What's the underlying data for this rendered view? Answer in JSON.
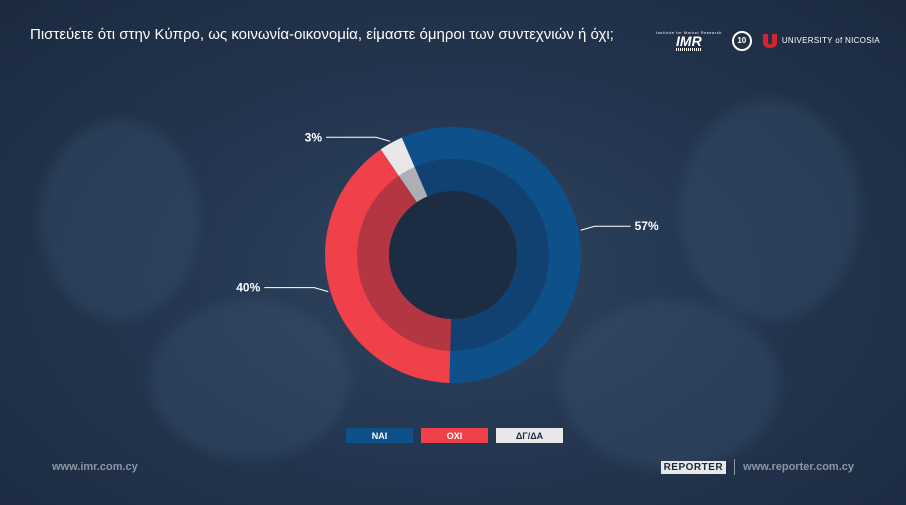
{
  "title": "Πιστεύετε ότι στην Κύπρο, ως κοινωνία-οικονομία, είμαστε όμηροι των συντεχνιών ή όχι;",
  "logos": {
    "imr_small": "Institute for Market Research",
    "imr_big": "IMR",
    "anniversary": "10",
    "university": "UNIVERSITY of NICOSIA"
  },
  "chart_data": {
    "type": "pie",
    "variant": "donut",
    "categories": [
      "ΝΑΙ",
      "ΟΧΙ",
      "ΔΓ/ΔΑ"
    ],
    "values": [
      57,
      40,
      3
    ],
    "labels": [
      "57%",
      "40%",
      "3%"
    ],
    "colors": [
      "#0e5089",
      "#f0404a",
      "#e8e8e8"
    ],
    "legend_position": "bottom"
  },
  "footer": {
    "left_url": "www.imr.com.cy",
    "brand": "REPORTER",
    "right_url": "www.reporter.com.cy"
  }
}
